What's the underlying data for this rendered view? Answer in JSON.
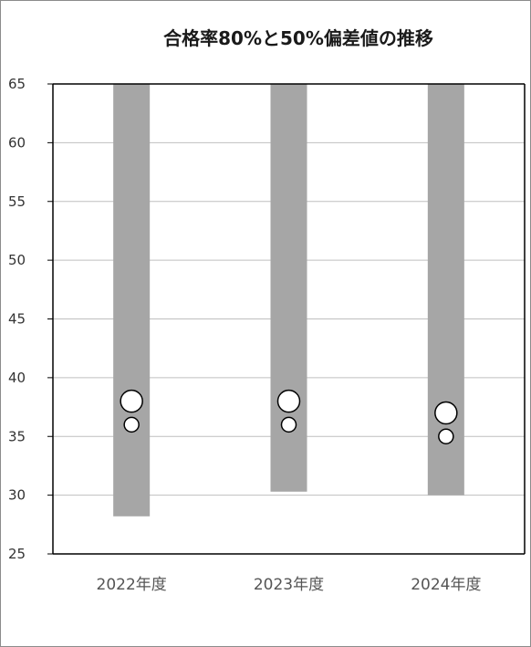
{
  "chart_data": {
    "type": "bar",
    "title": "合格率80%と50%偏差値の推移",
    "categories": [
      "2022年度",
      "2023年度",
      "2024年度"
    ],
    "range_bars": [
      {
        "category": "2022年度",
        "low": 28.2,
        "high": 65
      },
      {
        "category": "2023年度",
        "low": 30.3,
        "high": 65
      },
      {
        "category": "2024年度",
        "low": 30.0,
        "high": 65
      }
    ],
    "series": [
      {
        "marker": "large-circle",
        "values": [
          38,
          38,
          37
        ]
      },
      {
        "marker": "small-circle",
        "values": [
          36,
          36,
          35
        ]
      }
    ],
    "ylim": [
      25,
      65
    ],
    "yticks": [
      "25",
      "30",
      "35",
      "40",
      "45",
      "50",
      "55",
      "60",
      "65"
    ],
    "grid": true,
    "legend": "none",
    "colors": {
      "bar": "#a6a6a6",
      "marker_fill": "#ffffff",
      "marker_edge": "#000000",
      "gridline": "#bfbfbf"
    }
  }
}
